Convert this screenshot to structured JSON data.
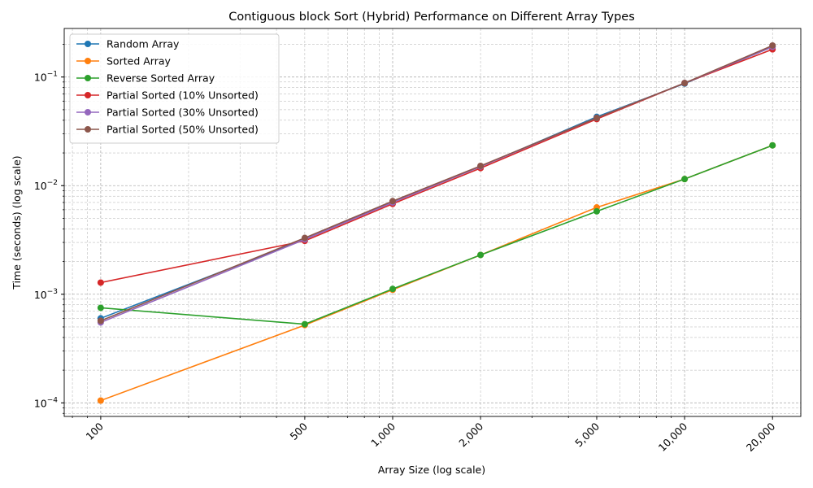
{
  "chart_data": {
    "type": "line",
    "title": "Contiguous block Sort (Hybrid) Performance on Different Array Types",
    "xlabel": "Array Size (log scale)",
    "ylabel": "Time (seconds) (log scale)",
    "xscale": "log",
    "yscale": "log",
    "xlim": [
      75,
      25000
    ],
    "ylim": [
      7.5e-05,
      0.28
    ],
    "grid": true,
    "legend_position": "top-left",
    "x": [
      100,
      500,
      1000,
      2000,
      5000,
      10000,
      20000
    ],
    "x_tick_labels": [
      "100",
      "500",
      "1,000",
      "2,000",
      "5,000",
      "10,000",
      "20,000"
    ],
    "y_major_ticks": [
      {
        "value": 0.0001,
        "base": "10",
        "exp": "−4"
      },
      {
        "value": 0.001,
        "base": "10",
        "exp": "−3"
      },
      {
        "value": 0.01,
        "base": "10",
        "exp": "−2"
      },
      {
        "value": 0.1,
        "base": "10",
        "exp": "−1"
      }
    ],
    "series": [
      {
        "name": "Random Array",
        "color": "#1f77b4",
        "values": [
          0.0006,
          0.0032,
          0.0071,
          0.015,
          0.043,
          0.087,
          0.19
        ]
      },
      {
        "name": "Sorted Array",
        "color": "#ff7f0e",
        "values": [
          0.000105,
          0.00052,
          0.0011,
          0.0023,
          0.0063,
          0.0115,
          0.0235
        ]
      },
      {
        "name": "Reverse Sorted Array",
        "color": "#2ca02c",
        "values": [
          0.00075,
          0.00053,
          0.00112,
          0.0023,
          0.0058,
          0.0115,
          0.0235
        ]
      },
      {
        "name": "Partial Sorted (10% Unsorted)",
        "color": "#d62728",
        "values": [
          0.00128,
          0.0031,
          0.0068,
          0.0145,
          0.041,
          0.088,
          0.18
        ]
      },
      {
        "name": "Partial Sorted (30% Unsorted)",
        "color": "#9467bd",
        "values": [
          0.00055,
          0.0032,
          0.007,
          0.015,
          0.042,
          0.088,
          0.19
        ]
      },
      {
        "name": "Partial Sorted (50% Unsorted)",
        "color": "#8c564b",
        "values": [
          0.00057,
          0.0033,
          0.0072,
          0.0152,
          0.042,
          0.088,
          0.195
        ]
      }
    ]
  }
}
